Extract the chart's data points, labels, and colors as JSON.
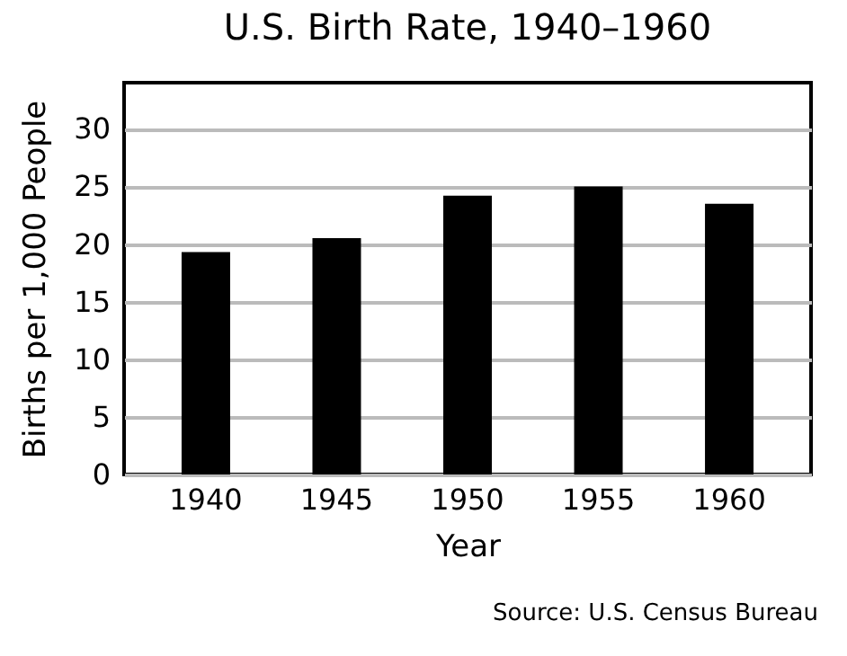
{
  "chart_data": {
    "type": "bar",
    "title": "U.S. Birth Rate, 1940–1960",
    "xlabel": "Year",
    "ylabel": "Births per 1,000 People",
    "categories": [
      "1940",
      "1945",
      "1950",
      "1955",
      "1960"
    ],
    "values": [
      19.3,
      20.5,
      24.2,
      25.0,
      23.5
    ],
    "color": "#000000",
    "ylim": [
      0,
      34
    ],
    "yticks": [
      0,
      5,
      10,
      15,
      20,
      25,
      30
    ],
    "grid": "y",
    "annotations": [
      "Source: U.S. Census Bureau"
    ]
  }
}
